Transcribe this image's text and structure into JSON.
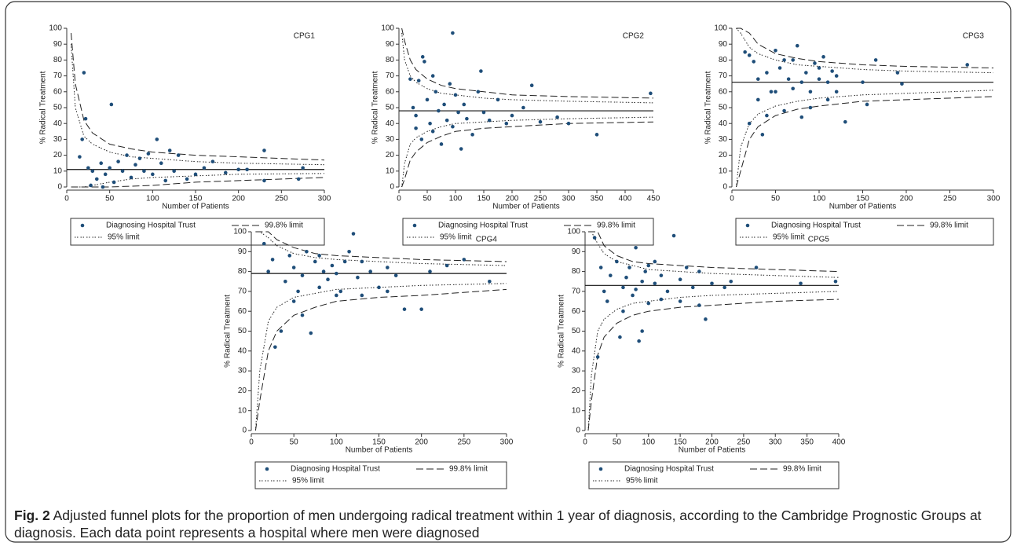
{
  "chart_data": [
    {
      "type": "scatter",
      "title": "CPG1",
      "x_label": "Number of Patients",
      "y_label": "% Radical Treatment",
      "xlim": [
        0,
        300
      ],
      "ylim": [
        0,
        100
      ],
      "xticks": [
        0,
        50,
        100,
        150,
        200,
        250,
        300
      ],
      "yticks": [
        0,
        10,
        20,
        30,
        40,
        50,
        60,
        70,
        80,
        90,
        100
      ],
      "series": [
        {
          "name": "Diagnosing Hospital Trust",
          "color": "#1f4e79",
          "x": [
            20,
            52,
            22,
            15,
            18,
            25,
            30,
            35,
            40,
            45,
            50,
            55,
            60,
            65,
            70,
            75,
            80,
            85,
            90,
            95,
            100,
            105,
            110,
            115,
            120,
            125,
            130,
            140,
            150,
            160,
            170,
            185,
            200,
            210,
            230,
            230,
            270,
            275,
            28,
            42
          ],
          "values": [
            72,
            52,
            43,
            19,
            30,
            12,
            10,
            5,
            15,
            8,
            12,
            3,
            16,
            10,
            20,
            6,
            14,
            18,
            10,
            21,
            8,
            30,
            15,
            4,
            23,
            10,
            20,
            5,
            8,
            12,
            16,
            9,
            11,
            11,
            23,
            4,
            5,
            12,
            1,
            0
          ]
        }
      ],
      "limits": [
        {
          "name": "99.8% limit",
          "dash": "long-dash",
          "x": [
            5,
            10,
            20,
            30,
            50,
            75,
            100,
            150,
            200,
            300
          ],
          "upper": [
            97,
            65,
            42,
            34,
            27,
            24,
            22,
            20,
            19,
            17
          ],
          "lower": [
            0,
            0,
            0,
            0,
            0,
            0.5,
            1,
            3,
            4,
            6
          ]
        },
        {
          "name": "95% limit",
          "dash": "dot",
          "x": [
            5,
            10,
            20,
            30,
            50,
            75,
            100,
            150,
            200,
            300
          ],
          "upper": [
            90,
            50,
            32,
            27,
            22,
            19,
            18,
            16,
            15,
            14
          ],
          "lower": [
            0,
            0,
            0,
            1,
            3,
            5,
            6,
            7,
            8,
            8.5
          ]
        }
      ],
      "target": 11
    },
    {
      "type": "scatter",
      "title": "CPG2",
      "x_label": "Number of Patients",
      "y_label": "% Radical Treatment",
      "xlim": [
        0,
        450
      ],
      "ylim": [
        0,
        100
      ],
      "xticks": [
        0,
        50,
        100,
        150,
        200,
        250,
        300,
        350,
        400,
        450
      ],
      "yticks": [
        0,
        10,
        20,
        30,
        40,
        50,
        60,
        70,
        80,
        90,
        100
      ],
      "series": [
        {
          "name": "Diagnosing Hospital Trust",
          "color": "#1f4e79",
          "x": [
            95,
            42,
            45,
            35,
            20,
            25,
            30,
            40,
            50,
            55,
            60,
            65,
            70,
            75,
            80,
            85,
            90,
            95,
            100,
            105,
            110,
            115,
            120,
            130,
            140,
            145,
            150,
            160,
            175,
            190,
            200,
            220,
            235,
            250,
            280,
            300,
            350,
            445,
            30,
            60
          ],
          "values": [
            97,
            82,
            79,
            67,
            68,
            50,
            45,
            30,
            55,
            40,
            35,
            60,
            48,
            27,
            52,
            42,
            65,
            38,
            58,
            47,
            24,
            52,
            43,
            33,
            60,
            73,
            47,
            42,
            55,
            40,
            45,
            50,
            64,
            41,
            44,
            40,
            33,
            59,
            37,
            70
          ]
        }
      ],
      "limits": [
        {
          "name": "99.8% limit",
          "dash": "long-dash",
          "x": [
            5,
            10,
            20,
            30,
            50,
            75,
            100,
            150,
            200,
            300,
            450
          ],
          "upper": [
            100,
            92,
            80,
            74,
            68,
            64,
            62,
            60,
            58,
            57,
            56
          ],
          "lower": [
            0,
            5,
            17,
            22,
            28,
            32,
            35,
            37,
            38,
            40,
            41
          ]
        },
        {
          "name": "95% limit",
          "dash": "dot",
          "x": [
            5,
            10,
            20,
            30,
            50,
            75,
            100,
            150,
            200,
            300,
            450
          ],
          "upper": [
            97,
            80,
            70,
            66,
            62,
            59,
            58,
            56,
            55,
            54,
            53
          ],
          "lower": [
            0,
            15,
            27,
            31,
            35,
            38,
            40,
            41,
            42,
            43,
            44
          ]
        }
      ],
      "target": 48
    },
    {
      "type": "scatter",
      "title": "CPG3",
      "x_label": "Number of Patients",
      "y_label": "% Radical Treatment",
      "xlim": [
        0,
        300
      ],
      "ylim": [
        0,
        100
      ],
      "xticks": [
        0,
        50,
        100,
        150,
        200,
        250,
        300
      ],
      "yticks": [
        0,
        10,
        20,
        30,
        40,
        50,
        60,
        70,
        80,
        90,
        100
      ],
      "series": [
        {
          "name": "Diagnosing Hospital Trust",
          "color": "#1f4e79",
          "x": [
            15,
            20,
            25,
            30,
            35,
            40,
            45,
            50,
            55,
            60,
            65,
            70,
            75,
            80,
            85,
            90,
            95,
            100,
            105,
            110,
            115,
            120,
            130,
            150,
            155,
            165,
            190,
            195,
            270,
            20,
            30,
            50,
            70,
            90,
            100,
            120,
            40,
            60,
            80,
            110
          ],
          "values": [
            85,
            83,
            79,
            55,
            33,
            72,
            60,
            86,
            75,
            48,
            68,
            80,
            89,
            44,
            72,
            60,
            78,
            68,
            82,
            55,
            73,
            60,
            41,
            66,
            52,
            80,
            72,
            65,
            77,
            40,
            68,
            60,
            62,
            50,
            75,
            70,
            45,
            80,
            66,
            66
          ]
        }
      ],
      "limits": [
        {
          "name": "99.8% limit",
          "dash": "long-dash",
          "x": [
            5,
            10,
            20,
            30,
            50,
            75,
            100,
            150,
            200,
            300
          ],
          "upper": [
            100,
            100,
            97,
            90,
            84,
            81,
            79,
            77,
            76,
            75
          ],
          "lower": [
            0,
            10,
            30,
            38,
            45,
            49,
            51,
            54,
            55,
            57
          ]
        },
        {
          "name": "95% limit",
          "dash": "dot",
          "x": [
            5,
            10,
            20,
            30,
            50,
            75,
            100,
            150,
            200,
            300
          ],
          "upper": [
            100,
            97,
            88,
            84,
            80,
            77,
            76,
            74,
            73,
            72
          ],
          "lower": [
            0,
            25,
            40,
            46,
            51,
            54,
            56,
            58,
            59,
            61
          ]
        }
      ],
      "target": 66
    },
    {
      "type": "scatter",
      "title": "CPG4",
      "x_label": "Number of Patients",
      "y_label": "% Radical Treatment",
      "xlim": [
        0,
        300
      ],
      "ylim": [
        0,
        100
      ],
      "xticks": [
        0,
        50,
        100,
        150,
        200,
        250,
        300
      ],
      "yticks": [
        0,
        10,
        20,
        30,
        40,
        50,
        60,
        70,
        80,
        90,
        100
      ],
      "series": [
        {
          "name": "Diagnosing Hospital Trust",
          "color": "#1f4e79",
          "x": [
            15,
            20,
            28,
            35,
            40,
            45,
            50,
            55,
            60,
            65,
            70,
            75,
            80,
            85,
            90,
            95,
            100,
            105,
            110,
            115,
            120,
            125,
            130,
            140,
            150,
            160,
            170,
            180,
            200,
            210,
            250,
            280,
            25,
            50,
            80,
            100,
            130,
            160,
            230,
            60
          ],
          "values": [
            94,
            80,
            42,
            50,
            75,
            88,
            82,
            70,
            78,
            90,
            49,
            85,
            72,
            80,
            76,
            83,
            79,
            70,
            85,
            90,
            99,
            77,
            85,
            80,
            72,
            82,
            78,
            61,
            61,
            80,
            86,
            75,
            86,
            65,
            88,
            68,
            68,
            70,
            83,
            58
          ]
        }
      ],
      "limits": [
        {
          "name": "99.8% limit",
          "dash": "long-dash",
          "x": [
            5,
            10,
            20,
            30,
            50,
            75,
            100,
            150,
            200,
            300
          ],
          "upper": [
            100,
            100,
            100,
            96,
            92,
            89,
            88,
            87,
            86,
            85
          ],
          "lower": [
            0,
            15,
            40,
            50,
            58,
            62,
            65,
            67,
            68,
            71
          ]
        },
        {
          "name": "95% limit",
          "dash": "dot",
          "x": [
            5,
            10,
            20,
            30,
            50,
            75,
            100,
            150,
            200,
            300
          ],
          "upper": [
            100,
            100,
            97,
            93,
            89,
            87,
            86,
            85,
            84,
            83
          ],
          "lower": [
            0,
            30,
            55,
            62,
            67,
            69,
            71,
            72,
            73,
            74
          ]
        }
      ],
      "target": 79
    },
    {
      "type": "scatter",
      "title": "CPG5",
      "x_label": "Number of Patients",
      "y_label": "% Radical Treatment",
      "xlim": [
        0,
        400
      ],
      "ylim": [
        0,
        100
      ],
      "xticks": [
        0,
        50,
        100,
        150,
        200,
        250,
        300,
        350,
        400
      ],
      "yticks": [
        0,
        10,
        20,
        30,
        40,
        50,
        60,
        70,
        80,
        90,
        100
      ],
      "series": [
        {
          "name": "Diagnosing Hospital Trust",
          "color": "#1f4e79",
          "x": [
            15,
            20,
            25,
            30,
            40,
            50,
            55,
            60,
            65,
            70,
            75,
            80,
            85,
            90,
            95,
            100,
            110,
            120,
            130,
            140,
            150,
            160,
            170,
            180,
            190,
            200,
            220,
            230,
            270,
            340,
            395,
            35,
            90,
            100,
            120,
            150,
            180,
            60,
            80,
            110
          ],
          "values": [
            97,
            37,
            82,
            70,
            78,
            85,
            47,
            72,
            77,
            82,
            68,
            92,
            45,
            75,
            80,
            64,
            74,
            78,
            70,
            98,
            76,
            82,
            72,
            63,
            56,
            74,
            72,
            75,
            82,
            74,
            75,
            65,
            50,
            83,
            66,
            65,
            80,
            60,
            71,
            85
          ]
        }
      ],
      "limits": [
        {
          "name": "99.8% limit",
          "dash": "long-dash",
          "x": [
            5,
            10,
            20,
            30,
            50,
            75,
            100,
            150,
            200,
            300,
            400
          ],
          "upper": [
            100,
            100,
            100,
            93,
            88,
            85,
            84,
            83,
            82,
            81,
            80
          ],
          "lower": [
            0,
            15,
            38,
            47,
            54,
            58,
            60,
            62,
            63,
            65,
            66
          ]
        },
        {
          "name": "95% limit",
          "dash": "dot",
          "x": [
            5,
            10,
            20,
            30,
            50,
            75,
            100,
            150,
            200,
            300,
            400
          ],
          "upper": [
            100,
            100,
            94,
            89,
            85,
            83,
            81,
            80,
            79,
            78,
            77
          ],
          "lower": [
            0,
            28,
            50,
            56,
            61,
            64,
            65,
            67,
            68,
            69,
            70
          ]
        }
      ],
      "target": 73
    }
  ],
  "caption": {
    "label": "Fig. 2",
    "text": "Adjusted funnel plots for the proportion of men undergoing radical treatment within 1 year of diagnosis, according to the Cambridge Prognostic Groups at diagnosis. Each data point represents a hospital where men were diagnosed"
  }
}
